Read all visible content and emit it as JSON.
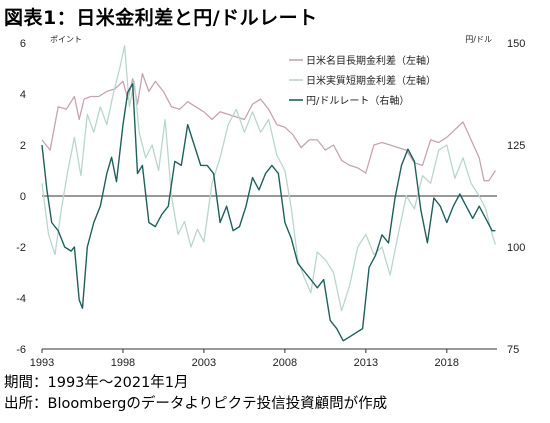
{
  "title": "図表1：日米金利差と円/ドルレート",
  "notes": {
    "period": "期間：1993年～2021年1月",
    "source": "出所：Bloombergのデータよりピクテ投信投資顧問が作成"
  },
  "chart_data": {
    "type": "line",
    "left_axis": {
      "unit": "ポイント",
      "ylim": [
        -6,
        6
      ],
      "ticks": [
        "6",
        "4",
        "2",
        "0",
        "-2",
        "-4",
        "-6"
      ]
    },
    "right_axis": {
      "unit": "円/ドル",
      "ylim": [
        75,
        150
      ],
      "ticks": [
        "150",
        "125",
        "100",
        "75"
      ]
    },
    "x_ticks": [
      "1993",
      "1998",
      "2003",
      "2008",
      "2013",
      "2018"
    ],
    "xlim": [
      1993.0,
      2021.1
    ],
    "grid": false,
    "legend_position": "top-right",
    "series": [
      {
        "name": "日米名目長期金利差（左軸）",
        "axis": "left",
        "color": "#c9a2b1",
        "x": [
          1993.0,
          1993.5,
          1994.0,
          1994.5,
          1995.0,
          1995.3,
          1995.6,
          1996.0,
          1996.5,
          1997.0,
          1997.5,
          1998.0,
          1998.3,
          1998.6,
          1998.9,
          1999.2,
          1999.6,
          2000.0,
          2000.5,
          2001.0,
          2001.5,
          2002.0,
          2002.5,
          2003.0,
          2003.5,
          2004.0,
          2004.5,
          2005.0,
          2005.5,
          2006.0,
          2006.5,
          2007.0,
          2007.5,
          2008.0,
          2008.5,
          2009.0,
          2009.5,
          2010.0,
          2010.5,
          2011.0,
          2011.5,
          2012.0,
          2012.5,
          2013.0,
          2013.5,
          2014.0,
          2014.5,
          2015.0,
          2015.5,
          2016.0,
          2016.5,
          2017.0,
          2017.5,
          2018.0,
          2018.5,
          2019.0,
          2019.5,
          2020.0,
          2020.3,
          2020.6,
          2021.0
        ],
        "values": [
          2.2,
          1.8,
          3.5,
          3.4,
          3.9,
          3.0,
          3.8,
          3.9,
          3.9,
          4.1,
          4.2,
          4.5,
          3.8,
          4.6,
          3.6,
          4.8,
          4.1,
          4.5,
          4.1,
          3.5,
          3.4,
          3.7,
          3.5,
          3.3,
          3.0,
          3.3,
          3.2,
          3.1,
          3.0,
          3.6,
          3.8,
          3.4,
          2.8,
          2.7,
          2.4,
          1.9,
          2.2,
          2.2,
          1.8,
          2.0,
          1.4,
          1.2,
          1.1,
          0.9,
          2.0,
          2.1,
          2.0,
          1.9,
          1.8,
          1.3,
          1.2,
          2.2,
          2.1,
          2.3,
          2.6,
          2.9,
          2.2,
          1.5,
          0.6,
          0.6,
          1.0
        ]
      },
      {
        "name": "日米実質短期金利差（左軸）",
        "axis": "left",
        "color": "#b9d6cc",
        "x": [
          1993.0,
          1993.4,
          1993.8,
          1994.2,
          1994.6,
          1995.0,
          1995.4,
          1995.8,
          1996.2,
          1996.6,
          1997.0,
          1997.4,
          1997.8,
          1998.1,
          1998.4,
          1998.7,
          1999.0,
          1999.4,
          1999.8,
          2000.2,
          2000.6,
          2001.0,
          2001.4,
          2001.8,
          2002.2,
          2002.6,
          2003.0,
          2003.5,
          2004.0,
          2004.5,
          2005.0,
          2005.5,
          2006.0,
          2006.5,
          2007.0,
          2007.5,
          2008.0,
          2008.4,
          2008.8,
          2009.2,
          2009.6,
          2010.0,
          2010.5,
          2011.0,
          2011.5,
          2012.0,
          2012.5,
          2013.0,
          2013.5,
          2014.0,
          2014.5,
          2015.0,
          2015.5,
          2016.0,
          2016.5,
          2017.0,
          2017.5,
          2018.0,
          2018.5,
          2019.0,
          2019.5,
          2020.0,
          2020.4,
          2020.8,
          2021.0
        ],
        "values": [
          0.5,
          -1.5,
          -2.3,
          -0.5,
          1.0,
          2.3,
          0.8,
          3.2,
          2.5,
          3.5,
          2.8,
          4.0,
          5.0,
          5.9,
          3.5,
          4.5,
          2.5,
          1.5,
          2.0,
          1.0,
          3.0,
          0.0,
          -1.5,
          -1.0,
          -2.0,
          -1.3,
          -1.8,
          0.5,
          1.5,
          2.8,
          3.4,
          2.5,
          3.3,
          2.5,
          3.0,
          1.6,
          1.0,
          -0.5,
          -2.5,
          -3.2,
          -3.8,
          -2.2,
          -2.5,
          -3.0,
          -4.5,
          -3.5,
          -2.0,
          -1.5,
          -2.3,
          -2.0,
          -3.1,
          -1.5,
          0.0,
          -0.5,
          0.8,
          0.5,
          1.8,
          2.0,
          0.7,
          1.5,
          0.5,
          0.0,
          -0.5,
          -1.5,
          -1.9
        ]
      },
      {
        "name": "円/ドルレート（右軸）",
        "axis": "right",
        "color": "#1f5f5c",
        "x": [
          1993.0,
          1993.3,
          1993.6,
          1994.0,
          1994.4,
          1994.8,
          1995.0,
          1995.3,
          1995.5,
          1995.8,
          1996.2,
          1996.6,
          1997.0,
          1997.3,
          1997.6,
          1998.0,
          1998.3,
          1998.6,
          1998.9,
          1999.2,
          1999.6,
          2000.0,
          2000.4,
          2000.8,
          2001.2,
          2001.6,
          2002.0,
          2002.4,
          2002.8,
          2003.2,
          2003.6,
          2004.0,
          2004.4,
          2004.8,
          2005.2,
          2005.6,
          2006.0,
          2006.4,
          2006.8,
          2007.2,
          2007.6,
          2008.0,
          2008.4,
          2008.8,
          2009.2,
          2009.6,
          2010.0,
          2010.4,
          2010.8,
          2011.2,
          2011.6,
          2012.0,
          2012.4,
          2012.8,
          2013.2,
          2013.6,
          2014.0,
          2014.4,
          2014.8,
          2015.2,
          2015.6,
          2016.0,
          2016.4,
          2016.8,
          2017.2,
          2017.6,
          2018.0,
          2018.4,
          2018.8,
          2019.2,
          2019.6,
          2020.0,
          2020.4,
          2020.8,
          2021.0
        ],
        "values": [
          125,
          114,
          106,
          104,
          100,
          99,
          100,
          87,
          85,
          100,
          106,
          110,
          118,
          122,
          116,
          130,
          138,
          140,
          118,
          120,
          106,
          105,
          108,
          110,
          121,
          120,
          130,
          125,
          120,
          120,
          118,
          106,
          110,
          104,
          105,
          110,
          117,
          114,
          118,
          120,
          118,
          106,
          102,
          96,
          94,
          92,
          90,
          92,
          82,
          80,
          77,
          78,
          79,
          80,
          95,
          98,
          103,
          101,
          112,
          120,
          124,
          121,
          109,
          101,
          112,
          110,
          106,
          110,
          113,
          110,
          107,
          110,
          107,
          104,
          104
        ]
      }
    ]
  }
}
